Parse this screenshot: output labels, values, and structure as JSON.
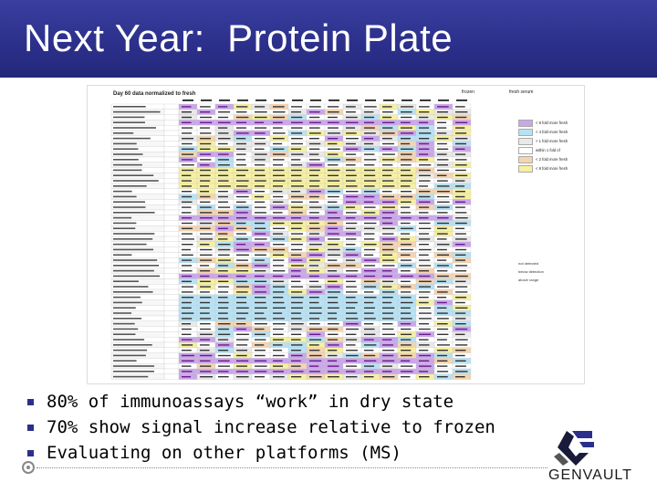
{
  "slide": {
    "title": "Next Year:  Protein Plate"
  },
  "table": {
    "title": "Day 60 data normalized to fresh",
    "header_note_1": "frozen",
    "header_note_2": "fresh serum",
    "row_count": 52
  },
  "legend": {
    "items": [
      {
        "label": "< 8 fold more fresh",
        "color": "#c9a7e8"
      },
      {
        "label": "< 4 fold more fresh",
        "color": "#b7e2f4"
      },
      {
        "label": "> 1 fold more fresh",
        "color": "#e9e9e9"
      },
      {
        "label": "within 1 fold of",
        "color": "#ffffff"
      },
      {
        "label": "< 2 fold more fresh",
        "color": "#f5d4b0"
      },
      {
        "label": "< 8 fold more fresh",
        "color": "#f6f0a0"
      }
    ],
    "notes": [
      "not detected",
      "below detection",
      "above range"
    ]
  },
  "bullets": [
    "80% of immunoassays “work” in dry state",
    "70% show signal increase relative to frozen",
    "Evaluating on other platforms (MS)"
  ],
  "logo": {
    "text": "GENVAULT"
  },
  "colors": {
    "header_bg": "#2b2f8a",
    "bullet": "#2b2f8a"
  }
}
